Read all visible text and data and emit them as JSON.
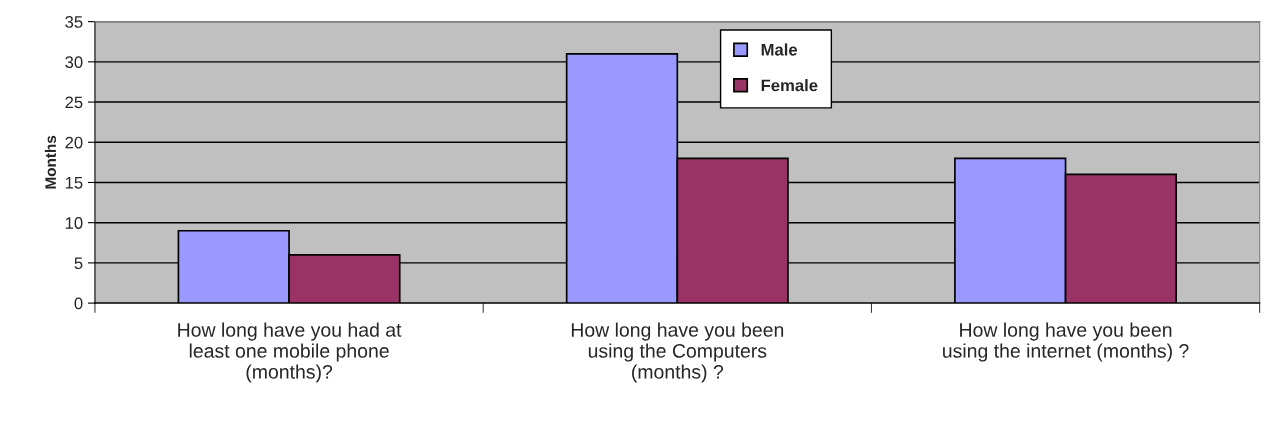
{
  "chart_data": {
    "type": "bar",
    "ylabel": "Months",
    "categories": [
      "How long have you had at\nleast one mobile phone\n(months)?",
      "How long have you been\nusing the Computers\n(months) ?",
      "How long have you been\nusing the internet (months) ?"
    ],
    "series": [
      {
        "name": "Male",
        "color": "#9999ff",
        "values": [
          9,
          31,
          18
        ]
      },
      {
        "name": "Female",
        "color": "#993366",
        "values": [
          6,
          18,
          16
        ]
      }
    ],
    "ylim": [
      0,
      35
    ],
    "yticks": [
      0,
      5,
      10,
      15,
      20,
      25,
      30,
      35
    ],
    "grid": "y",
    "legend": "top"
  }
}
